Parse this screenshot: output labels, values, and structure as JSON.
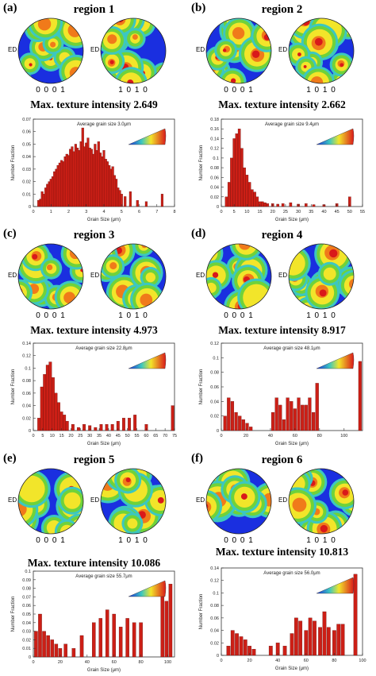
{
  "pole_labels": [
    "0 0 0 1",
    "1 0 1 0"
  ],
  "ed_label": "ED",
  "ylabel": "Number Fraction",
  "xlabel": "Grain Size (μm)",
  "colors": {
    "bar": "#cc1f16",
    "bar_stroke": "#5a0a08"
  },
  "panels": [
    {
      "label": "(a)",
      "title": "region 1",
      "max_text": "Max. texture intensity 2.649",
      "chart_data": {
        "type": "bar",
        "title": "Average grain size 3.0μm",
        "xlabel": "Grain Size (μm)",
        "ylabel": "Number Fraction",
        "xlim": [
          0,
          8
        ],
        "ylim": [
          0,
          0.07
        ],
        "xticks": [
          0,
          1,
          2,
          3,
          4,
          5,
          6,
          7,
          8
        ],
        "yticks": [
          0,
          0.01,
          0.02,
          0.03,
          0.04,
          0.05,
          0.06,
          0.07
        ],
        "bin_width": 0.125,
        "x": [
          0.3,
          0.4,
          0.5,
          0.6,
          0.7,
          0.8,
          0.9,
          1.0,
          1.1,
          1.2,
          1.3,
          1.4,
          1.5,
          1.6,
          1.7,
          1.8,
          1.9,
          2.0,
          2.1,
          2.2,
          2.3,
          2.4,
          2.5,
          2.6,
          2.7,
          2.8,
          2.9,
          3.0,
          3.1,
          3.2,
          3.3,
          3.4,
          3.5,
          3.6,
          3.7,
          3.8,
          3.9,
          4.0,
          4.1,
          4.2,
          4.3,
          4.4,
          4.5,
          4.6,
          4.7,
          4.8,
          4.9,
          5.0,
          5.2,
          5.5,
          5.9,
          6.4,
          7.3
        ],
        "values": [
          0.005,
          0.006,
          0.012,
          0.01,
          0.015,
          0.018,
          0.02,
          0.022,
          0.024,
          0.028,
          0.03,
          0.033,
          0.035,
          0.037,
          0.036,
          0.04,
          0.042,
          0.041,
          0.046,
          0.048,
          0.044,
          0.05,
          0.047,
          0.045,
          0.052,
          0.063,
          0.048,
          0.051,
          0.055,
          0.047,
          0.046,
          0.042,
          0.05,
          0.045,
          0.052,
          0.043,
          0.04,
          0.045,
          0.038,
          0.036,
          0.033,
          0.03,
          0.032,
          0.025,
          0.022,
          0.015,
          0.013,
          0.01,
          0.008,
          0.012,
          0.005,
          0.004,
          0.01
        ]
      }
    },
    {
      "label": "(b)",
      "title": "region 2",
      "max_text": "Max. texture intensity 2.662",
      "chart_data": {
        "type": "bar",
        "title": "Average grain size 9.4μm",
        "xlabel": "Grain Size (μm)",
        "ylabel": "Number Fraction",
        "xlim": [
          0,
          55
        ],
        "ylim": [
          0,
          0.18
        ],
        "xticks": [
          0,
          5,
          10,
          15,
          20,
          25,
          30,
          35,
          40,
          45,
          50,
          55
        ],
        "yticks": [
          0,
          0.02,
          0.04,
          0.06,
          0.08,
          0.1,
          0.12,
          0.14,
          0.16,
          0.18
        ],
        "bin_width": 1,
        "x": [
          2,
          3,
          4,
          5,
          6,
          7,
          8,
          9,
          10,
          11,
          12,
          13,
          14,
          15,
          16,
          17,
          18,
          20,
          22,
          24,
          27,
          30,
          33,
          36,
          40,
          45,
          50
        ],
        "values": [
          0.02,
          0.05,
          0.1,
          0.14,
          0.15,
          0.16,
          0.12,
          0.08,
          0.065,
          0.05,
          0.035,
          0.03,
          0.02,
          0.01,
          0.01,
          0.008,
          0.006,
          0.006,
          0.005,
          0.006,
          0.008,
          0.005,
          0.006,
          0.004,
          0.004,
          0.006,
          0.02
        ]
      }
    },
    {
      "label": "(c)",
      "title": "region 3",
      "max_text": "Max. texture intensity 4.973",
      "chart_data": {
        "type": "bar",
        "title": "Average grain size 22.8μm",
        "xlabel": "Grain Size (μm)",
        "ylabel": "Number Fraction",
        "xlim": [
          0,
          75
        ],
        "ylim": [
          0,
          0.14
        ],
        "xticks": [
          0,
          5,
          10,
          15,
          20,
          25,
          30,
          35,
          40,
          45,
          50,
          55,
          60,
          65,
          70,
          75
        ],
        "yticks": [
          0,
          0.02,
          0.04,
          0.06,
          0.08,
          0.1,
          0.12,
          0.14
        ],
        "bin_width": 1.5,
        "x": [
          3,
          4.5,
          6,
          7.5,
          9,
          10.5,
          12,
          13.5,
          15,
          16.5,
          18,
          21,
          24,
          27,
          30,
          33,
          36,
          39,
          42,
          45,
          48,
          51,
          54,
          60,
          74
        ],
        "values": [
          0.02,
          0.07,
          0.09,
          0.105,
          0.11,
          0.085,
          0.06,
          0.045,
          0.03,
          0.025,
          0.015,
          0.01,
          0.005,
          0.01,
          0.008,
          0.005,
          0.01,
          0.01,
          0.01,
          0.015,
          0.02,
          0.02,
          0.025,
          0.01,
          0.04
        ]
      }
    },
    {
      "label": "(d)",
      "title": "region 4",
      "max_text": "Max. texture intensity 8.917",
      "chart_data": {
        "type": "bar",
        "title": "Average grain size 48.1μm",
        "xlabel": "Grain Size (μm)",
        "ylabel": "Number Fraction",
        "xlim": [
          0,
          115
        ],
        "ylim": [
          0,
          0.12
        ],
        "xticks": [
          0,
          20,
          40,
          60,
          80,
          100
        ],
        "yticks": [
          0,
          0.02,
          0.04,
          0.06,
          0.08,
          0.1,
          0.12
        ],
        "bin_width": 2.5,
        "x": [
          3,
          6,
          9,
          12,
          15,
          18,
          21,
          24,
          42,
          45,
          48,
          51,
          54,
          57,
          60,
          63,
          66,
          69,
          72,
          75,
          78,
          113
        ],
        "values": [
          0.02,
          0.045,
          0.04,
          0.025,
          0.02,
          0.015,
          0.01,
          0.005,
          0.025,
          0.045,
          0.035,
          0.015,
          0.045,
          0.04,
          0.03,
          0.045,
          0.035,
          0.035,
          0.045,
          0.025,
          0.065,
          0.095
        ]
      }
    },
    {
      "label": "(e)",
      "title": "region 5",
      "max_text": "Max. texture intensity 10.086",
      "chart_data": {
        "type": "bar",
        "title": "Average grain size 55.7μm",
        "xlabel": "Grain Size (μm)",
        "ylabel": "Number Fraction",
        "xlim": [
          0,
          105
        ],
        "ylim": [
          0,
          0.1
        ],
        "xticks": [
          0,
          20,
          40,
          60,
          80,
          100
        ],
        "yticks": [
          0,
          0.01,
          0.02,
          0.03,
          0.04,
          0.05,
          0.06,
          0.07,
          0.08,
          0.09,
          0.1
        ],
        "bin_width": 2.5,
        "x": [
          2,
          5,
          8,
          11,
          14,
          17,
          20,
          24,
          30,
          36,
          45,
          50,
          55,
          60,
          65,
          70,
          75,
          80,
          96,
          99,
          102
        ],
        "values": [
          0.03,
          0.05,
          0.03,
          0.025,
          0.02,
          0.015,
          0.01,
          0.015,
          0.01,
          0.025,
          0.04,
          0.045,
          0.055,
          0.05,
          0.035,
          0.045,
          0.04,
          0.04,
          0.075,
          0.065,
          0.085
        ]
      }
    },
    {
      "label": "(f)",
      "title": "region 6",
      "max_text": "Max. texture intensity 10.813",
      "chart_data": {
        "type": "bar",
        "title": "Average grain size 56.0μm",
        "xlabel": "Grain Size (μm)",
        "ylabel": "Number Fraction",
        "xlim": [
          0,
          100
        ],
        "ylim": [
          0,
          0.14
        ],
        "xticks": [
          0,
          20,
          40,
          60,
          80,
          100
        ],
        "yticks": [
          0,
          0.02,
          0.04,
          0.06,
          0.08,
          0.1,
          0.12,
          0.14
        ],
        "bin_width": 2.5,
        "x": [
          5,
          8,
          11,
          14,
          17,
          20,
          23,
          35,
          40,
          45,
          50,
          53,
          56,
          60,
          63,
          66,
          70,
          73,
          76,
          80,
          83,
          86,
          95
        ],
        "values": [
          0.015,
          0.04,
          0.035,
          0.03,
          0.025,
          0.015,
          0.01,
          0.015,
          0.02,
          0.015,
          0.035,
          0.06,
          0.055,
          0.04,
          0.06,
          0.055,
          0.045,
          0.07,
          0.045,
          0.04,
          0.05,
          0.05,
          0.13
        ]
      }
    }
  ]
}
